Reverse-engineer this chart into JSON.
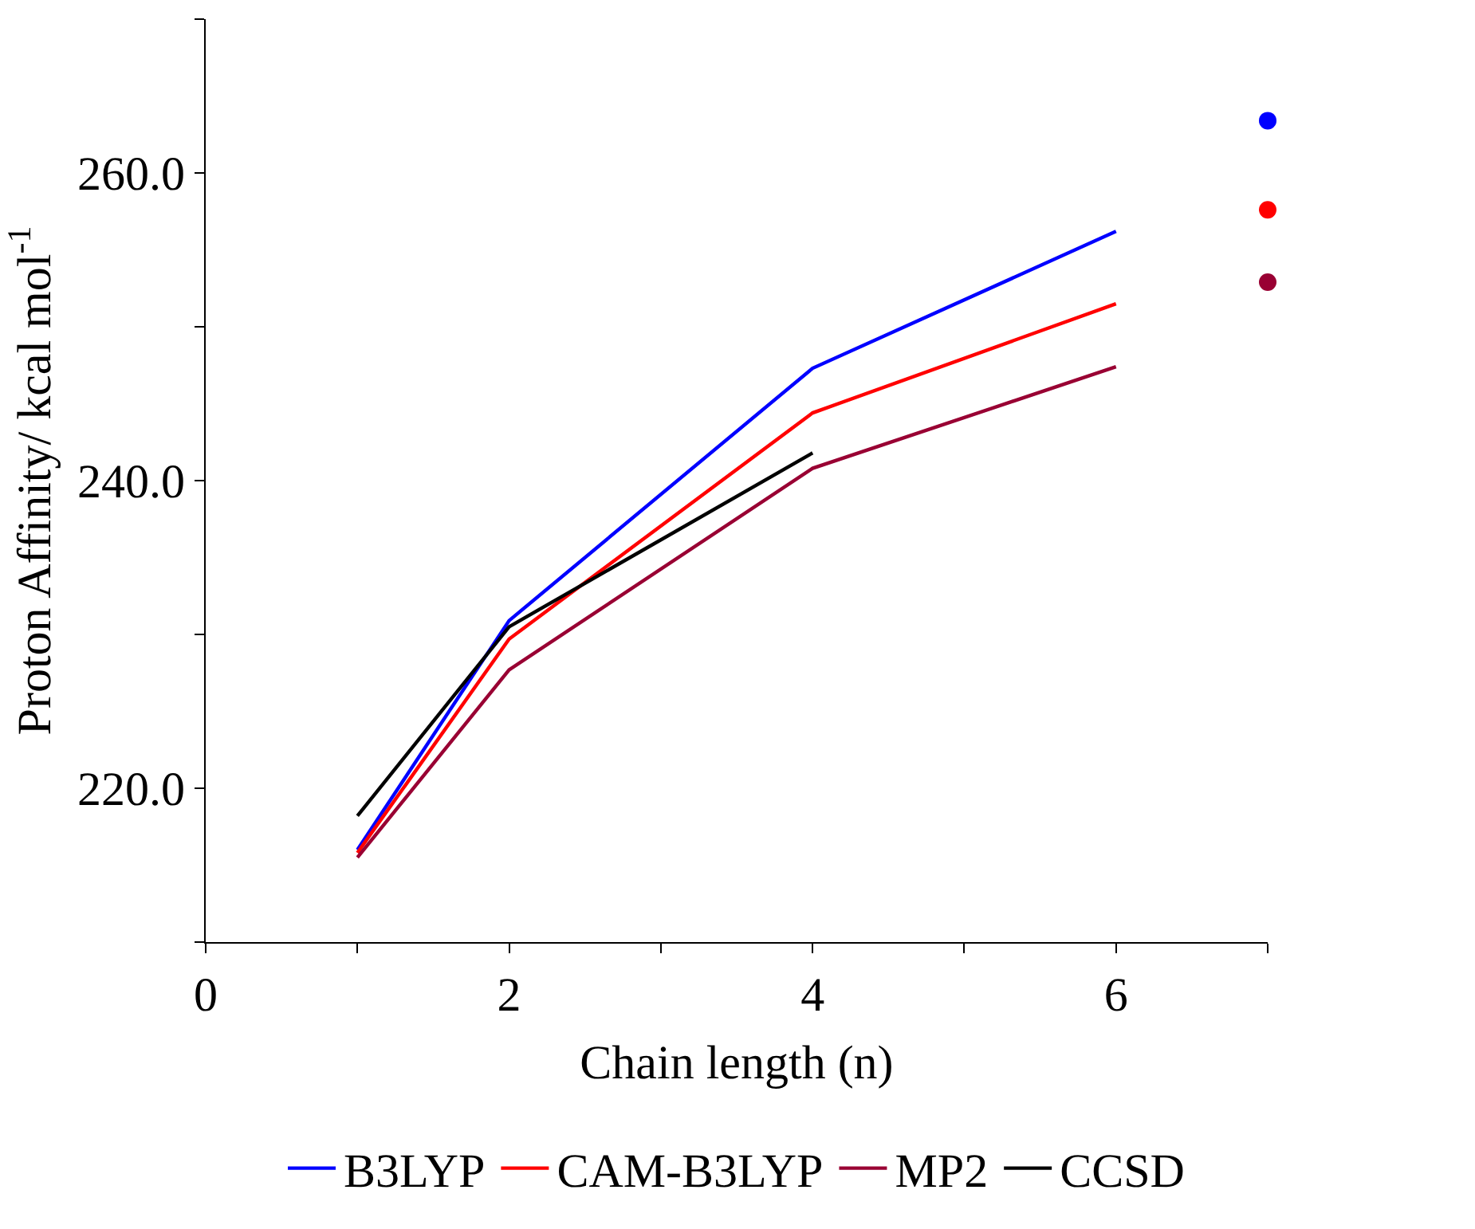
{
  "chart_data": {
    "type": "line",
    "xlabel": "Chain length (n)",
    "ylabel": "Proton Affinity/ kcal mol$^{-1}$",
    "xlim": [
      0,
      7
    ],
    "ylim": [
      210,
      270
    ],
    "xticks": [
      0,
      {
        "value": 1,
        "label": null
      },
      2,
      {
        "value": 3,
        "label": null
      },
      4,
      {
        "value": 5,
        "label": null
      },
      6,
      {
        "value": 7,
        "label": null
      }
    ],
    "yticks": [
      {
        "value": 210,
        "label": null
      },
      {
        "value": 220,
        "label": "220.0"
      },
      {
        "value": 230,
        "label": null
      },
      {
        "value": 240,
        "label": "240.0"
      },
      {
        "value": 250,
        "label": null
      },
      {
        "value": 260,
        "label": "260.0"
      },
      {
        "value": 270,
        "label": null
      }
    ],
    "legend": "bottom",
    "marker": "none",
    "line_style": "solid",
    "series": [
      {
        "name": "B3LYP",
        "color": "#0000ff",
        "x": [
          1,
          2,
          4,
          6
        ],
        "values": [
          216.0,
          230.9,
          247.3,
          256.2
        ]
      },
      {
        "name": "CAM-B3LYP",
        "color": "#ff0000",
        "x": [
          1,
          2,
          4,
          6
        ],
        "values": [
          215.8,
          229.7,
          244.4,
          251.5
        ]
      },
      {
        "name": "MP2",
        "color": "#990033",
        "x": [
          1,
          2,
          4,
          6
        ],
        "values": [
          215.5,
          227.7,
          240.8,
          247.4
        ]
      },
      {
        "name": "CCSD",
        "color": "#000000",
        "x": [
          1,
          2,
          4
        ],
        "values": [
          218.2,
          230.5,
          241.8
        ]
      },
      {
        "type": "scatter",
        "marker": "circle",
        "color": "#0000ff",
        "x": [
          7
        ],
        "values": [
          263.4
        ]
      },
      {
        "type": "scatter",
        "marker": "circle",
        "color": "#ff0000",
        "x": [
          7
        ],
        "values": [
          257.6
        ]
      },
      {
        "type": "scatter",
        "marker": "circle",
        "color": "#990033",
        "x": [
          7
        ],
        "values": [
          252.9
        ]
      }
    ]
  }
}
